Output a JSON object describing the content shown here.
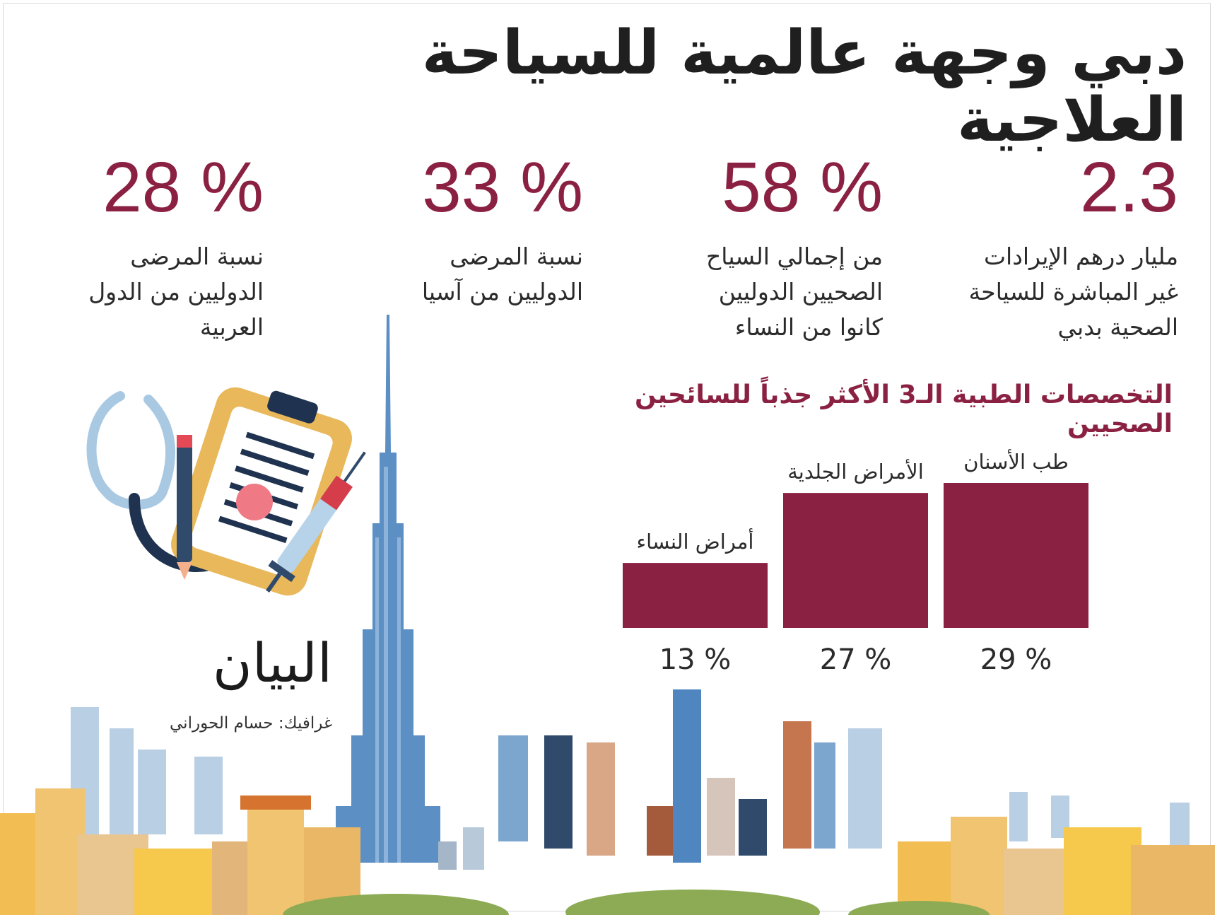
{
  "title": "دبي وجهة عالمية للسياحة العلاجية",
  "stats": [
    {
      "value": "2.3",
      "lines": [
        "مليار درهم الإيرادات",
        "غير المباشرة للسياحة",
        "الصحية بدبي"
      ]
    },
    {
      "value": "58 %",
      "lines": [
        "من إجمالي السياح",
        "الصحيين الدوليين",
        "كانوا من النساء"
      ]
    },
    {
      "value": "33 %",
      "lines": [
        "نسبة المرضى",
        "الدوليين من آسيا"
      ]
    },
    {
      "value": "28 %",
      "lines": [
        "نسبة المرضى",
        "الدوليين من الدول",
        "العربية"
      ]
    }
  ],
  "chart_data": {
    "type": "bar",
    "title": "التخصصات الطبية الـ3 الأكثر جذباً للسائحين الصحيين",
    "categories": [
      "طب الأسنان",
      "الأمراض الجلدية",
      "أمراض النساء"
    ],
    "values": [
      29,
      27,
      13
    ],
    "value_labels": [
      "29 %",
      "27 %",
      "13 %"
    ],
    "unit": "%",
    "ylim": [
      0,
      29
    ],
    "bar_color": "#8b2142",
    "grid": false,
    "axes_visible": false
  },
  "logo_text": "البيان",
  "credit": "غرافيك: حسام الحوراني",
  "icons": [
    "stethoscope-icon",
    "clipboard-icon",
    "syringe-icon",
    "pencil-icon",
    "burj-khalifa-skyline"
  ],
  "colors": {
    "accent": "#8b2142",
    "text": "#2b2b2b"
  }
}
